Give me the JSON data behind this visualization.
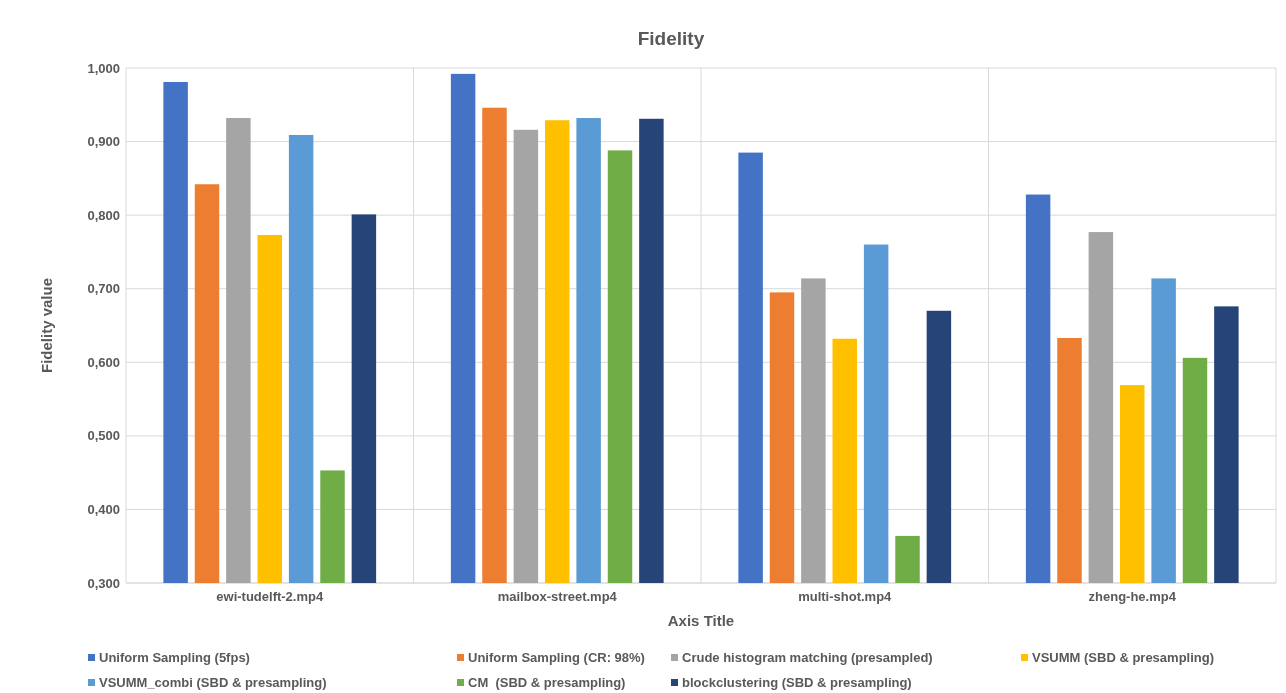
{
  "chart_data": {
    "type": "bar",
    "title": "Fidelity",
    "xlabel": "Axis Title",
    "ylabel": "Fidelity value",
    "categories": [
      "ewi-tudelft-2.mp4",
      "mailbox-street.mp4",
      "multi-shot.mp4",
      "zheng-he.mp4"
    ],
    "series": [
      {
        "name": "Uniform Sampling (5fps)",
        "color": "#4472c4",
        "values": [
          0.981,
          0.992,
          0.885,
          0.828
        ]
      },
      {
        "name": "Uniform Sampling (CR: 98%)",
        "color": "#ed7d31",
        "values": [
          0.842,
          0.946,
          0.695,
          0.633
        ]
      },
      {
        "name": "Crude histogram matching (presampled)",
        "color": "#a5a5a5",
        "values": [
          0.932,
          0.916,
          0.714,
          0.777
        ]
      },
      {
        "name": "VSUMM (SBD & presampling)",
        "color": "#ffc000",
        "values": [
          0.773,
          0.929,
          0.632,
          0.569
        ]
      },
      {
        "name": "VSUMM_combi (SBD & presampling)",
        "color": "#5b9bd5",
        "values": [
          0.909,
          0.932,
          0.76,
          0.714
        ]
      },
      {
        "name": "CM  (SBD & presampling)",
        "color": "#70ad47",
        "values": [
          0.453,
          0.888,
          0.364,
          0.606
        ]
      },
      {
        "name": "blockclustering (SBD & presampling)",
        "color": "#264478",
        "values": [
          0.801,
          0.931,
          0.67,
          0.676
        ]
      }
    ],
    "ylim": [
      0.3,
      1.0
    ],
    "yticks": [
      {
        "value": 0.3,
        "label": "0,300"
      },
      {
        "value": 0.4,
        "label": "0,400"
      },
      {
        "value": 0.5,
        "label": "0,500"
      },
      {
        "value": 0.6,
        "label": "0,600"
      },
      {
        "value": 0.7,
        "label": "0,700"
      },
      {
        "value": 0.8,
        "label": "0,800"
      },
      {
        "value": 0.9,
        "label": "0,900"
      },
      {
        "value": 1.0,
        "label": "1,000"
      }
    ],
    "grid": true,
    "legend": "bottom"
  }
}
